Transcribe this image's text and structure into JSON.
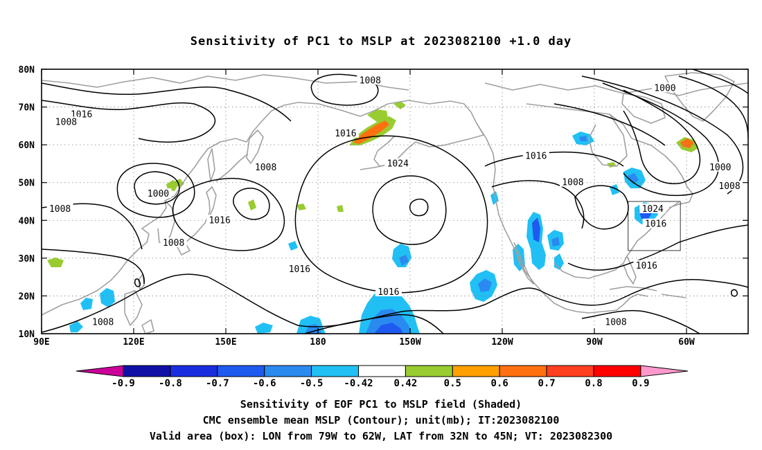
{
  "title": "Sensitivity of PC1 to MSLP at 2023082100 +1.0 day",
  "lat_labels": [
    "80N",
    "70N",
    "60N",
    "50N",
    "40N",
    "30N",
    "20N",
    "10N"
  ],
  "lon_labels": [
    "90E",
    "120E",
    "150E",
    "180",
    "150W",
    "120W",
    "90W",
    "60W"
  ],
  "contour_labels": [
    {
      "text": "1008",
      "lon": -163,
      "lat": 77
    },
    {
      "text": "1016",
      "lon": 103,
      "lat": 68
    },
    {
      "text": "1008",
      "lon": 98,
      "lat": 66
    },
    {
      "text": "1016",
      "lon": -171,
      "lat": 63
    },
    {
      "text": "1024",
      "lon": -154,
      "lat": 55
    },
    {
      "text": "1000",
      "lon": -67,
      "lat": 75
    },
    {
      "text": "1016",
      "lon": -109,
      "lat": 57
    },
    {
      "text": "1008",
      "lon": -97,
      "lat": 50
    },
    {
      "text": "1000",
      "lon": -49,
      "lat": 54
    },
    {
      "text": "1008",
      "lon": -46,
      "lat": 49
    },
    {
      "text": "1008",
      "lon": 163,
      "lat": 54
    },
    {
      "text": "1000",
      "lon": 128,
      "lat": 47
    },
    {
      "text": "1008",
      "lon": 96,
      "lat": 43
    },
    {
      "text": "1016",
      "lon": 148,
      "lat": 40
    },
    {
      "text": "1024",
      "lon": -71,
      "lat": 43
    },
    {
      "text": "1016",
      "lon": -70,
      "lat": 39
    },
    {
      "text": "1008",
      "lon": 133,
      "lat": 34
    },
    {
      "text": "1016",
      "lon": 174,
      "lat": 27
    },
    {
      "text": "1016",
      "lon": -157,
      "lat": 21
    },
    {
      "text": "1016",
      "lon": -73,
      "lat": 28
    },
    {
      "text": "1008",
      "lon": -83,
      "lat": 13
    },
    {
      "text": "1008",
      "lon": 110,
      "lat": 13
    }
  ],
  "colorbar": {
    "labels": [
      "-0.9",
      "-0.8",
      "-0.7",
      "-0.6",
      "-0.5",
      "-0.42",
      "0.42",
      "0.5",
      "0.6",
      "0.7",
      "0.8",
      "0.9"
    ],
    "colors": [
      "#1010a8",
      "#1a2ee0",
      "#1e5af0",
      "#2a8af0",
      "#20c0f5",
      "#ffffff",
      "#98cc30",
      "#ffa000",
      "#ff7010",
      "#ff4020",
      "#ff0000"
    ],
    "low_end_color": "#cc0099",
    "high_end_color": "#ff99cc"
  },
  "colors": {
    "contour": "#000000",
    "coast": "#a0a0a0",
    "grid": "#808080",
    "blue_light": "#20c0f5",
    "blue_mid": "#2a8af0",
    "blue_dark": "#1e5af0",
    "green": "#98cc30",
    "orange": "#ff7010"
  },
  "valid_box": {
    "lon_from": -79,
    "lon_to": -62,
    "lat_from": 32,
    "lat_to": 45
  },
  "caption": {
    "line1": "Sensitivity of EOF PC1 to MSLP field (Shaded)",
    "line2": "CMC ensemble mean MSLP (Contour); unit(mb); IT:2023082100",
    "line3": "Valid area (box): LON from 79W to 62W, LAT from 32N to 45N; VT: 2023082300"
  }
}
